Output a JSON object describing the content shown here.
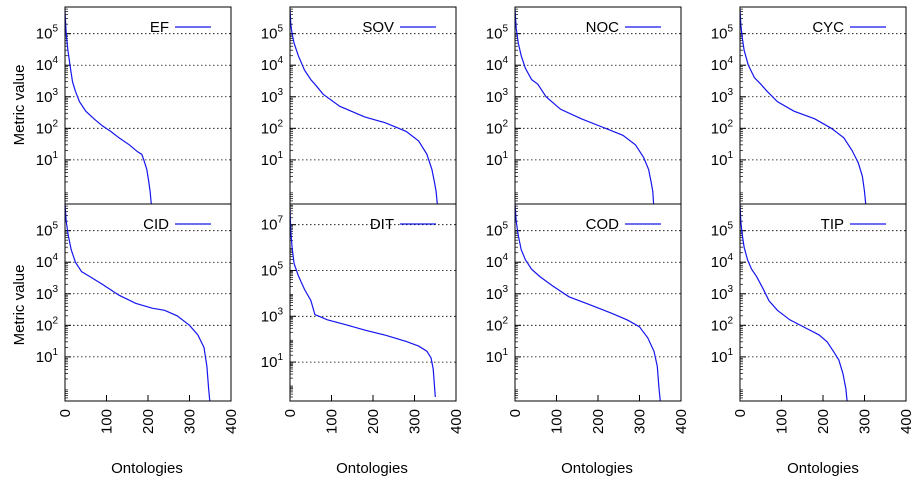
{
  "figure": {
    "ylabel": "Metric value",
    "xlabel": "Ontologies"
  },
  "colors": {
    "series": "#1515ee",
    "frame": "#000000",
    "grid": "#000000"
  },
  "chart_data": [
    {
      "type": "line",
      "name": "EF",
      "ylim": [
        0.4,
        700000
      ],
      "xlim": [
        0,
        400
      ],
      "yscale": "log",
      "grid": true,
      "legend": "top-right",
      "xticks": [
        "0",
        "100",
        "200",
        "300",
        "400"
      ],
      "ytick_labels": [
        {
          "v": 10,
          "exp": "1"
        },
        {
          "v": 100,
          "exp": "2"
        },
        {
          "v": 1000,
          "exp": "3"
        },
        {
          "v": 10000,
          "exp": "4"
        },
        {
          "v": 100000,
          "exp": "5"
        }
      ],
      "x": [
        0,
        3,
        7,
        12,
        18,
        25,
        35,
        50,
        70,
        90,
        110,
        130,
        155,
        175,
        185,
        190,
        197,
        202,
        205,
        208
      ],
      "y": [
        500000,
        100000,
        30000,
        10000,
        3000,
        1500,
        700,
        350,
        200,
        120,
        80,
        50,
        30,
        18,
        15,
        10,
        5,
        2,
        1,
        0.4
      ]
    },
    {
      "type": "line",
      "name": "SOV",
      "ylim": [
        0.4,
        700000
      ],
      "xlim": [
        0,
        400
      ],
      "yscale": "log",
      "grid": true,
      "legend": "top-right",
      "xticks": [
        "0",
        "100",
        "200",
        "300",
        "400"
      ],
      "ytick_labels": [
        {
          "v": 10,
          "exp": "1"
        },
        {
          "v": 100,
          "exp": "2"
        },
        {
          "v": 1000,
          "exp": "3"
        },
        {
          "v": 10000,
          "exp": "4"
        },
        {
          "v": 100000,
          "exp": "5"
        }
      ],
      "x": [
        0,
        2,
        5,
        10,
        20,
        35,
        50,
        60,
        80,
        120,
        180,
        230,
        280,
        310,
        330,
        342,
        348,
        352,
        355
      ],
      "y": [
        600000,
        200000,
        100000,
        50000,
        20000,
        7000,
        3500,
        2500,
        1200,
        500,
        230,
        150,
        80,
        40,
        15,
        5,
        2,
        1,
        0.4
      ]
    },
    {
      "type": "line",
      "name": "NOC",
      "ylim": [
        0.4,
        700000
      ],
      "xlim": [
        0,
        400
      ],
      "yscale": "log",
      "grid": true,
      "legend": "top-right",
      "xticks": [
        "0",
        "100",
        "200",
        "300",
        "400"
      ],
      "ytick_labels": [
        {
          "v": 10,
          "exp": "1"
        },
        {
          "v": 100,
          "exp": "2"
        },
        {
          "v": 1000,
          "exp": "3"
        },
        {
          "v": 10000,
          "exp": "4"
        },
        {
          "v": 100000,
          "exp": "5"
        }
      ],
      "x": [
        0,
        3,
        8,
        15,
        25,
        40,
        55,
        75,
        110,
        160,
        210,
        260,
        290,
        310,
        322,
        328,
        332,
        334
      ],
      "y": [
        600000,
        150000,
        50000,
        20000,
        8000,
        3500,
        2500,
        1000,
        400,
        200,
        110,
        60,
        30,
        12,
        5,
        2,
        1,
        0.4
      ]
    },
    {
      "type": "line",
      "name": "CYC",
      "ylim": [
        0.4,
        700000
      ],
      "xlim": [
        0,
        400
      ],
      "yscale": "log",
      "grid": true,
      "legend": "top-right",
      "xticks": [
        "0",
        "100",
        "200",
        "300",
        "400"
      ],
      "ytick_labels": [
        {
          "v": 10,
          "exp": "1"
        },
        {
          "v": 100,
          "exp": "2"
        },
        {
          "v": 1000,
          "exp": "3"
        },
        {
          "v": 10000,
          "exp": "4"
        },
        {
          "v": 100000,
          "exp": "5"
        }
      ],
      "x": [
        0,
        2,
        5,
        10,
        20,
        35,
        50,
        65,
        90,
        130,
        180,
        220,
        250,
        270,
        285,
        295,
        300,
        303
      ],
      "y": [
        600000,
        200000,
        80000,
        30000,
        10000,
        4000,
        2500,
        1500,
        700,
        350,
        200,
        100,
        50,
        20,
        8,
        3,
        1,
        0.4
      ]
    },
    {
      "type": "line",
      "name": "CID",
      "ylim": [
        0.4,
        700000
      ],
      "xlim": [
        0,
        400
      ],
      "yscale": "log",
      "grid": true,
      "legend": "top-right",
      "xticks": [
        "0",
        "100",
        "200",
        "300",
        "400"
      ],
      "ytick_labels": [
        {
          "v": 10,
          "exp": "1"
        },
        {
          "v": 100,
          "exp": "2"
        },
        {
          "v": 1000,
          "exp": "3"
        },
        {
          "v": 10000,
          "exp": "4"
        },
        {
          "v": 100000,
          "exp": "5"
        }
      ],
      "x": [
        0,
        3,
        8,
        15,
        25,
        40,
        60,
        90,
        130,
        170,
        210,
        240,
        270,
        300,
        320,
        335,
        342,
        346,
        349
      ],
      "y": [
        700000,
        200000,
        70000,
        25000,
        10000,
        5000,
        3500,
        2000,
        900,
        500,
        350,
        300,
        200,
        100,
        50,
        20,
        5,
        1,
        0.4
      ]
    },
    {
      "type": "line",
      "name": "DIT",
      "ylim": [
        0.2,
        80000000
      ],
      "xlim": [
        0,
        400
      ],
      "yscale": "log",
      "grid": true,
      "legend": "top-right",
      "xticks": [
        "0",
        "100",
        "200",
        "300",
        "400"
      ],
      "ytick_labels": [
        {
          "v": 10,
          "exp": "1"
        },
        {
          "v": 1000,
          "exp": "3"
        },
        {
          "v": 100000,
          "exp": "5"
        },
        {
          "v": 10000000,
          "exp": "7"
        }
      ],
      "x": [
        0,
        2,
        5,
        10,
        20,
        35,
        50,
        60,
        90,
        130,
        180,
        230,
        280,
        310,
        330,
        340,
        345,
        348,
        350
      ],
      "y": [
        50000000,
        5000000,
        1000000,
        200000,
        60000,
        15000,
        5000,
        1200,
        700,
        450,
        250,
        150,
        80,
        50,
        30,
        15,
        5,
        1,
        0.3
      ]
    },
    {
      "type": "line",
      "name": "COD",
      "ylim": [
        0.4,
        700000
      ],
      "xlim": [
        0,
        400
      ],
      "yscale": "log",
      "grid": true,
      "legend": "top-right",
      "xticks": [
        "0",
        "100",
        "200",
        "300",
        "400"
      ],
      "ytick_labels": [
        {
          "v": 10,
          "exp": "1"
        },
        {
          "v": 100,
          "exp": "2"
        },
        {
          "v": 1000,
          "exp": "3"
        },
        {
          "v": 10000,
          "exp": "4"
        },
        {
          "v": 100000,
          "exp": "5"
        }
      ],
      "x": [
        0,
        3,
        8,
        15,
        25,
        40,
        60,
        90,
        130,
        180,
        230,
        270,
        300,
        320,
        335,
        343,
        347,
        350
      ],
      "y": [
        700000,
        200000,
        70000,
        25000,
        12000,
        6000,
        3500,
        1800,
        800,
        450,
        250,
        150,
        90,
        40,
        15,
        5,
        1,
        0.4
      ]
    },
    {
      "type": "line",
      "name": "TIP",
      "ylim": [
        0.4,
        700000
      ],
      "xlim": [
        0,
        400
      ],
      "yscale": "log",
      "grid": true,
      "legend": "top-right",
      "xticks": [
        "0",
        "100",
        "200",
        "300",
        "400"
      ],
      "ytick_labels": [
        {
          "v": 10,
          "exp": "1"
        },
        {
          "v": 100,
          "exp": "2"
        },
        {
          "v": 1000,
          "exp": "3"
        },
        {
          "v": 10000,
          "exp": "4"
        },
        {
          "v": 100000,
          "exp": "5"
        }
      ],
      "x": [
        0,
        2,
        5,
        10,
        18,
        28,
        40,
        55,
        70,
        90,
        120,
        160,
        190,
        210,
        225,
        238,
        248,
        255,
        258
      ],
      "y": [
        700000,
        200000,
        80000,
        30000,
        12000,
        6000,
        3500,
        1500,
        600,
        300,
        150,
        80,
        50,
        30,
        15,
        8,
        3,
        1,
        0.4
      ]
    }
  ]
}
